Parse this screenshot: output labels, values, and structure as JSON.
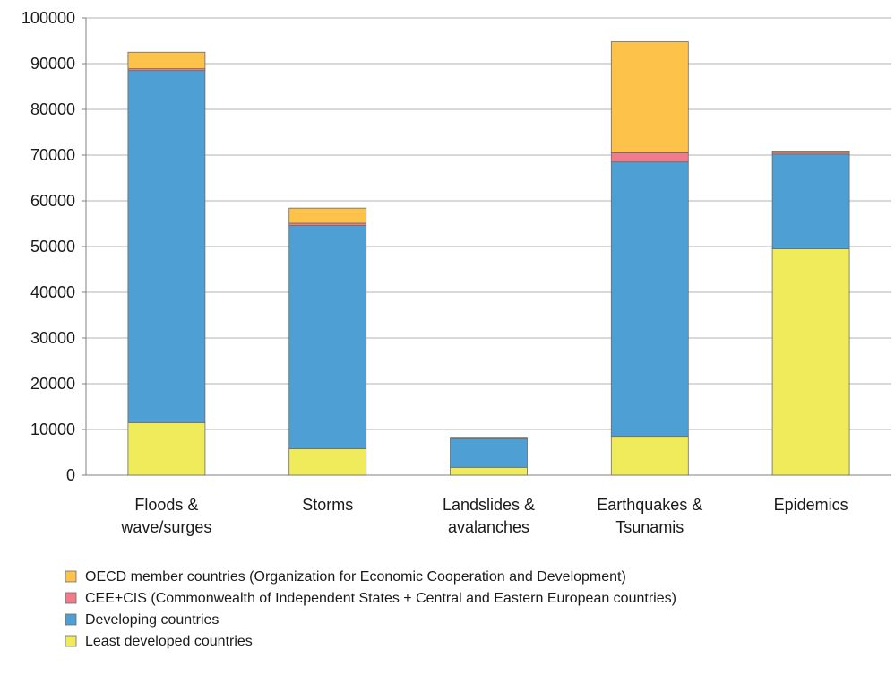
{
  "chart_data": {
    "type": "bar",
    "stacked": true,
    "categories": [
      [
        "Floods &",
        "wave/surges"
      ],
      [
        "Storms"
      ],
      [
        "Landslides &",
        "avalanches"
      ],
      [
        "Earthquakes &",
        "Tsunamis"
      ],
      [
        "Epidemics"
      ]
    ],
    "ylim": [
      0,
      100000
    ],
    "yticks": [
      0,
      10000,
      20000,
      30000,
      40000,
      50000,
      60000,
      70000,
      80000,
      90000,
      100000
    ],
    "grid": true,
    "legend_position": "bottom-left",
    "series": [
      {
        "name": "Least developed countries",
        "color": "#f0eb5a",
        "values": [
          11500,
          5800,
          1700,
          8500,
          49500
        ]
      },
      {
        "name": "Developing countries",
        "color": "#4e9fd4",
        "values": [
          77000,
          48800,
          6300,
          60000,
          20700
        ]
      },
      {
        "name": "CEE+CIS (Commonwealth of Independent States + Central and Eastern European countries)",
        "color": "#f07b8c",
        "values": [
          400,
          500,
          100,
          2000,
          400
        ]
      },
      {
        "name": "OECD member countries (Organization for Economic Cooperation and Development)",
        "color": "#fcc24a",
        "values": [
          3600,
          3300,
          200,
          24300,
          300
        ]
      }
    ],
    "legend_order": [
      3,
      2,
      1,
      0
    ]
  }
}
